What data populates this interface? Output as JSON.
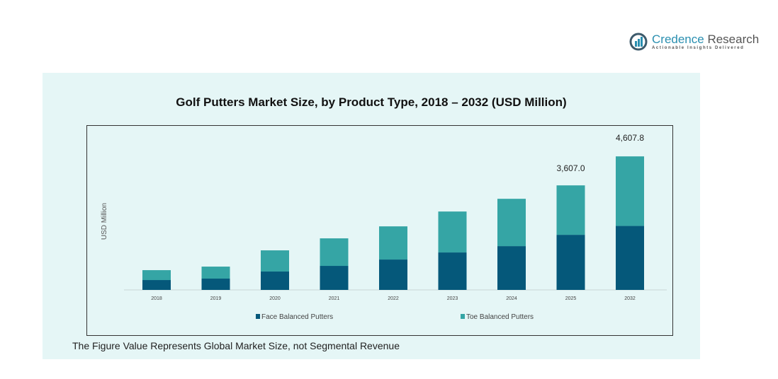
{
  "logo": {
    "name_part1": "Credence",
    "name_part2": " Research",
    "tagline": "Actionable Insights Delivered"
  },
  "footnote": "The Figure Value Represents Global Market Size, not Segmental Revenue",
  "chart_data": {
    "type": "bar",
    "stacked": true,
    "title": "Golf Putters Market Size, by Product Type, 2018 – 2032 (USD Million)",
    "xlabel": "",
    "ylabel": "USD Million",
    "ylim": [
      0,
      5000
    ],
    "grid": false,
    "legend_position": "bottom",
    "categories": [
      "2018",
      "2019",
      "2020",
      "2021",
      "2022",
      "2023",
      "2024",
      "2025",
      "2032"
    ],
    "series": [
      {
        "name": "Face Balanced Putters",
        "color": "#05587a",
        "values": [
          341,
          390,
          634,
          829,
          1048,
          1292,
          1511,
          1901,
          2207
        ]
      },
      {
        "name": "Toe Balanced Putters",
        "color": "#35a5a5",
        "values": [
          341,
          414,
          731,
          950,
          1145,
          1413,
          1633,
          1706,
          2400.8
        ]
      }
    ],
    "data_labels": [
      {
        "category": "2025",
        "text": "3,607.0"
      },
      {
        "category": "2032",
        "text": "4,607.8"
      }
    ]
  }
}
